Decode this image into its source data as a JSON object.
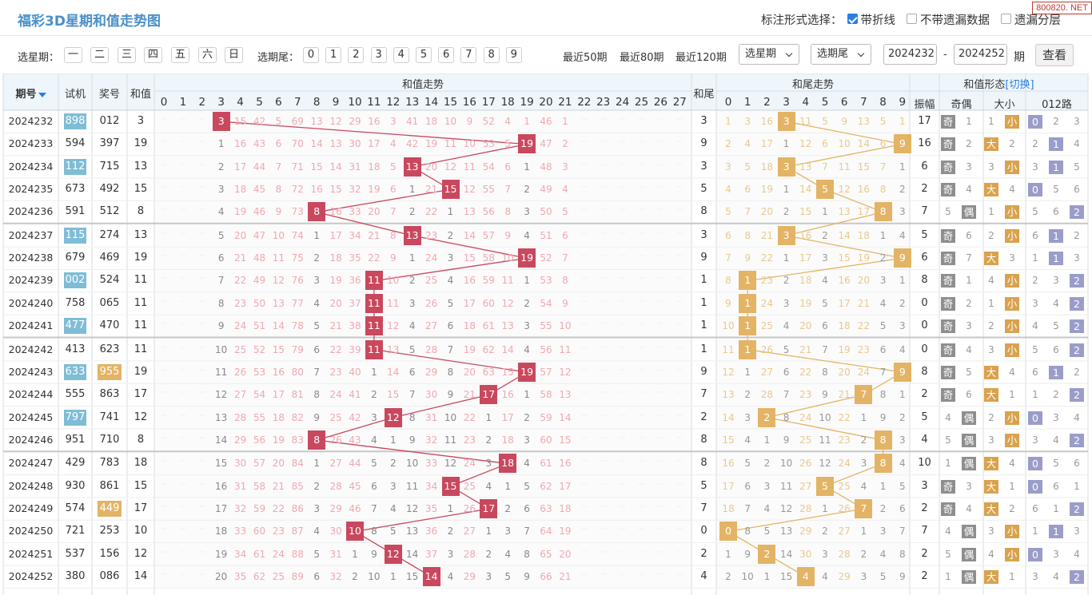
{
  "header": {
    "title": "福彩3D星期和值走势图",
    "mark_label": "标注形式选择：",
    "opt_line": "带折线",
    "opt_nomiss": "不带遗漏数据",
    "opt_layer": "遗漏分层",
    "watermark": "800820. NET"
  },
  "filter": {
    "weekday_label": "选星期：",
    "weekdays": [
      "一",
      "二",
      "三",
      "四",
      "五",
      "六",
      "日"
    ],
    "tail_label": "选期尾：",
    "tails": [
      "0",
      "1",
      "2",
      "3",
      "4",
      "5",
      "6",
      "7",
      "8",
      "9"
    ],
    "recent": [
      "最近50期",
      "最近80期",
      "最近120期"
    ],
    "sel_weekday": "选星期",
    "sel_tail": "选期尾",
    "from": "2024232",
    "dash": "-",
    "to": "2024252",
    "unit": "期",
    "query": "查看"
  },
  "table": {
    "h_period": "期号",
    "h_trial": "试机",
    "h_prize": "奖号",
    "h_sum": "和值",
    "h_trend": "和值走势",
    "h_tail": "和尾",
    "h_tailtrend": "和尾走势",
    "h_form": "和值形态",
    "h_switch": "[切换]",
    "h_amp": "振幅",
    "h_oe": "奇偶",
    "h_bs": "大小",
    "h_012": "012路",
    "oe_labels": [
      "奇",
      "偶"
    ],
    "bs_labels": [
      "大",
      "小"
    ],
    "r_labels": [
      "0",
      "1",
      "2"
    ]
  },
  "colors": {
    "red": "#c9485e",
    "gold": "#e3b465",
    "hl_blue": "#7fbcd6",
    "hl_gold": "#e3b465",
    "odd": "#8e8e8e",
    "bs": "#d9a24d",
    "r": "#9a9dc9"
  },
  "chart_data": {
    "type": "table",
    "title": "福彩3D星期和值走势图",
    "sum_axis": [
      0,
      27
    ],
    "tail_axis": [
      0,
      9
    ],
    "rows": [
      {
        "p": "2024232",
        "t": "898",
        "pz": "012",
        "s": 3,
        "tail": 3,
        "amp": 17,
        "th": "b",
        "ph": ""
      },
      {
        "p": "2024233",
        "t": "594",
        "pz": "397",
        "s": 19,
        "tail": 9,
        "amp": 16,
        "th": "",
        "ph": ""
      },
      {
        "p": "2024234",
        "t": "112",
        "pz": "715",
        "s": 13,
        "tail": 3,
        "amp": 6,
        "th": "b",
        "ph": ""
      },
      {
        "p": "2024235",
        "t": "673",
        "pz": "492",
        "s": 15,
        "tail": 5,
        "amp": 2,
        "th": "",
        "ph": ""
      },
      {
        "p": "2024236",
        "t": "591",
        "pz": "512",
        "s": 8,
        "tail": 8,
        "amp": 7,
        "th": "",
        "ph": ""
      },
      {
        "p": "2024237",
        "t": "115",
        "pz": "274",
        "s": 13,
        "tail": 3,
        "amp": 5,
        "th": "b",
        "ph": ""
      },
      {
        "p": "2024238",
        "t": "679",
        "pz": "469",
        "s": 19,
        "tail": 9,
        "amp": 6,
        "th": "",
        "ph": ""
      },
      {
        "p": "2024239",
        "t": "002",
        "pz": "524",
        "s": 11,
        "tail": 1,
        "amp": 8,
        "th": "b",
        "ph": ""
      },
      {
        "p": "2024240",
        "t": "758",
        "pz": "065",
        "s": 11,
        "tail": 1,
        "amp": 0,
        "th": "",
        "ph": ""
      },
      {
        "p": "2024241",
        "t": "477",
        "pz": "470",
        "s": 11,
        "tail": 1,
        "amp": 0,
        "th": "b",
        "ph": ""
      },
      {
        "p": "2024242",
        "t": "413",
        "pz": "623",
        "s": 11,
        "tail": 1,
        "amp": 0,
        "th": "",
        "ph": ""
      },
      {
        "p": "2024243",
        "t": "633",
        "pz": "955",
        "s": 19,
        "tail": 9,
        "amp": 8,
        "th": "b",
        "ph": "g"
      },
      {
        "p": "2024244",
        "t": "555",
        "pz": "863",
        "s": 17,
        "tail": 7,
        "amp": 2,
        "th": "",
        "ph": ""
      },
      {
        "p": "2024245",
        "t": "797",
        "pz": "741",
        "s": 12,
        "tail": 2,
        "amp": 5,
        "th": "b",
        "ph": ""
      },
      {
        "p": "2024246",
        "t": "951",
        "pz": "710",
        "s": 8,
        "tail": 8,
        "amp": 4,
        "th": "",
        "ph": ""
      },
      {
        "p": "2024247",
        "t": "429",
        "pz": "783",
        "s": 18,
        "tail": 8,
        "amp": 10,
        "th": "",
        "ph": ""
      },
      {
        "p": "2024248",
        "t": "930",
        "pz": "861",
        "s": 15,
        "tail": 5,
        "amp": 3,
        "th": "",
        "ph": ""
      },
      {
        "p": "2024249",
        "t": "574",
        "pz": "449",
        "s": 17,
        "tail": 7,
        "amp": 2,
        "th": "",
        "ph": "g"
      },
      {
        "p": "2024250",
        "t": "721",
        "pz": "253",
        "s": 10,
        "tail": 0,
        "amp": 7,
        "th": "",
        "ph": ""
      },
      {
        "p": "2024251",
        "t": "537",
        "pz": "156",
        "s": 12,
        "tail": 2,
        "amp": 2,
        "th": "",
        "ph": ""
      },
      {
        "p": "2024252",
        "t": "380",
        "pz": "086",
        "s": 14,
        "tail": 4,
        "amp": 2,
        "th": "",
        "ph": ""
      }
    ]
  }
}
